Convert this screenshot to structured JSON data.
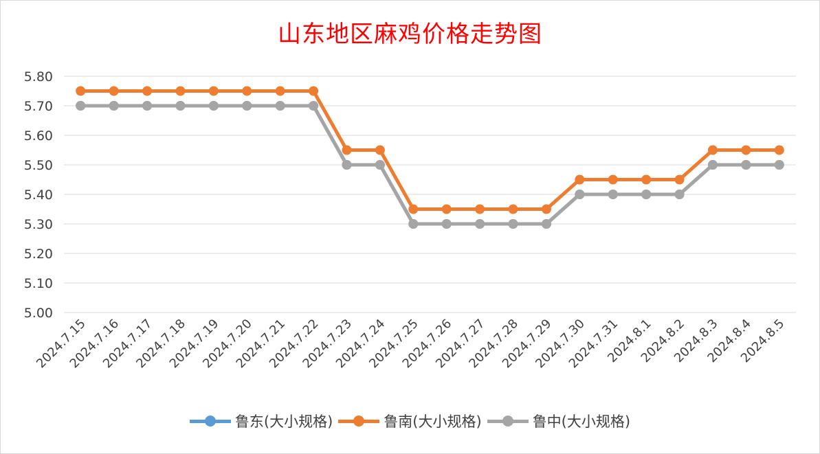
{
  "chart_data": {
    "type": "line",
    "title": "山东地区麻鸡价格走势图",
    "categories": [
      "2024.7.15",
      "2024.7.16",
      "2024.7.17",
      "2024.7.18",
      "2024.7.19",
      "2024.7.20",
      "2024.7.21",
      "2024.7.22",
      "2024.7.23",
      "2024.7.24",
      "2024.7.25",
      "2024.7.26",
      "2024.7.27",
      "2024.7.28",
      "2024.7.29",
      "2024.7.30",
      "2024.7.31",
      "2024.8.1",
      "2024.8.2",
      "2024.8.3",
      "2024.8.4",
      "2024.8.5"
    ],
    "series": [
      {
        "name": "鲁东(大小规格)",
        "color": "#5b9bd5",
        "values": [
          5.7,
          5.7,
          5.7,
          5.7,
          5.7,
          5.7,
          5.7,
          5.7,
          5.5,
          5.5,
          5.3,
          5.3,
          5.3,
          5.3,
          5.3,
          5.4,
          5.4,
          5.4,
          5.4,
          5.5,
          5.5,
          5.5
        ]
      },
      {
        "name": "鲁南(大小规格)",
        "color": "#ed7d31",
        "values": [
          5.75,
          5.75,
          5.75,
          5.75,
          5.75,
          5.75,
          5.75,
          5.75,
          5.55,
          5.55,
          5.35,
          5.35,
          5.35,
          5.35,
          5.35,
          5.45,
          5.45,
          5.45,
          5.45,
          5.55,
          5.55,
          5.55
        ]
      },
      {
        "name": "鲁中(大小规格)",
        "color": "#a5a5a5",
        "values": [
          5.7,
          5.7,
          5.7,
          5.7,
          5.7,
          5.7,
          5.7,
          5.7,
          5.5,
          5.5,
          5.3,
          5.3,
          5.3,
          5.3,
          5.3,
          5.4,
          5.4,
          5.4,
          5.4,
          5.5,
          5.5,
          5.5
        ]
      }
    ],
    "ylim": [
      5.0,
      5.8
    ],
    "yticks": [
      "5.00",
      "5.10",
      "5.20",
      "5.30",
      "5.40",
      "5.50",
      "5.60",
      "5.70",
      "5.80"
    ],
    "grid": true,
    "legend": "bottom"
  }
}
